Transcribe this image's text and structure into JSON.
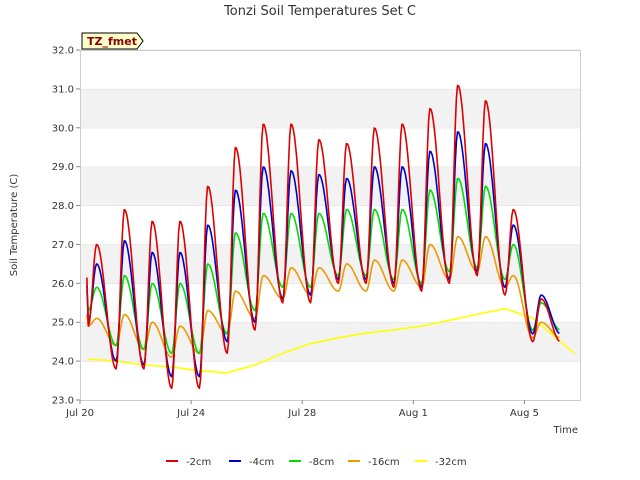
{
  "chart_data": {
    "type": "line",
    "title": "Tonzi Soil Temperatures Set C",
    "xlabel": "Time",
    "ylabel": "Soil Temperature (C)",
    "annotation": "TZ_fmet",
    "ylim": [
      23.0,
      32.0
    ],
    "yticks": [
      23.0,
      24.0,
      25.0,
      26.0,
      27.0,
      28.0,
      29.0,
      30.0,
      31.0,
      32.0
    ],
    "ytick_labels": [
      "23.0",
      "24.0",
      "25.0",
      "26.0",
      "27.0",
      "28.0",
      "29.0",
      "30.0",
      "31.0",
      "32.0"
    ],
    "xlim": [
      "2024-07-20",
      "2024-08-07"
    ],
    "xticks": [
      "2024-07-20",
      "2024-07-24",
      "2024-07-28",
      "2024-08-01",
      "2024-08-05"
    ],
    "xtick_labels": [
      "Jul 20",
      "Jul 24",
      "Jul 28",
      "Aug 1",
      "Aug 5"
    ],
    "grid": "horizontal bands",
    "legend_position": "bottom",
    "series": [
      {
        "name": "-2cm",
        "color": "#dd0000",
        "daily_max": [
          27.0,
          27.9,
          27.6,
          27.6,
          28.5,
          29.5,
          30.1,
          30.1,
          29.7,
          29.6,
          30.0,
          30.1,
          30.5,
          31.1,
          30.7,
          27.9,
          25.6
        ],
        "daily_min": [
          24.9,
          23.8,
          23.8,
          23.3,
          23.3,
          24.2,
          24.8,
          25.5,
          25.5,
          26.0,
          26.0,
          25.9,
          25.8,
          26.0,
          26.2,
          25.7,
          24.5
        ]
      },
      {
        "name": "-4cm",
        "color": "#0000cc",
        "daily_max": [
          26.5,
          27.1,
          26.8,
          26.8,
          27.5,
          28.4,
          29.0,
          28.9,
          28.8,
          28.7,
          29.0,
          29.0,
          29.4,
          29.9,
          29.6,
          27.5,
          25.7
        ],
        "daily_min": [
          25.0,
          24.0,
          23.9,
          23.6,
          23.6,
          24.5,
          25.0,
          25.6,
          25.7,
          26.1,
          26.1,
          26.0,
          25.9,
          26.1,
          26.3,
          25.9,
          24.7
        ]
      },
      {
        "name": "-8cm",
        "color": "#00dd00",
        "daily_max": [
          25.9,
          26.2,
          26.0,
          26.0,
          26.5,
          27.3,
          27.8,
          27.8,
          27.8,
          27.9,
          27.9,
          27.9,
          28.4,
          28.7,
          28.5,
          27.0,
          25.5
        ],
        "daily_min": [
          25.3,
          24.4,
          24.3,
          24.2,
          24.2,
          24.7,
          25.3,
          25.9,
          25.9,
          26.2,
          26.2,
          26.1,
          26.0,
          26.3,
          26.4,
          26.1,
          24.8
        ]
      },
      {
        "name": "-16cm",
        "color": "#ee9900",
        "daily_max": [
          25.1,
          25.2,
          25.0,
          24.9,
          25.3,
          25.8,
          26.2,
          26.4,
          26.4,
          26.5,
          26.6,
          26.6,
          27.0,
          27.2,
          27.2,
          26.2,
          25.0
        ],
        "daily_min": [
          24.9,
          24.4,
          24.3,
          24.1,
          24.2,
          24.7,
          25.1,
          25.6,
          25.7,
          25.8,
          25.8,
          25.8,
          25.9,
          26.1,
          26.3,
          25.9,
          24.6
        ]
      },
      {
        "name": "-32cm",
        "color": "#ffff00",
        "x": [
          0,
          1,
          2,
          3,
          4,
          5,
          6,
          7,
          8,
          9,
          10,
          11,
          12,
          13,
          14,
          15,
          16,
          17,
          17.5
        ],
        "values": [
          24.05,
          24.0,
          23.9,
          23.85,
          23.75,
          23.7,
          23.9,
          24.2,
          24.45,
          24.6,
          24.72,
          24.8,
          24.9,
          25.05,
          25.2,
          25.35,
          25.1,
          24.5,
          24.2
        ]
      }
    ]
  }
}
